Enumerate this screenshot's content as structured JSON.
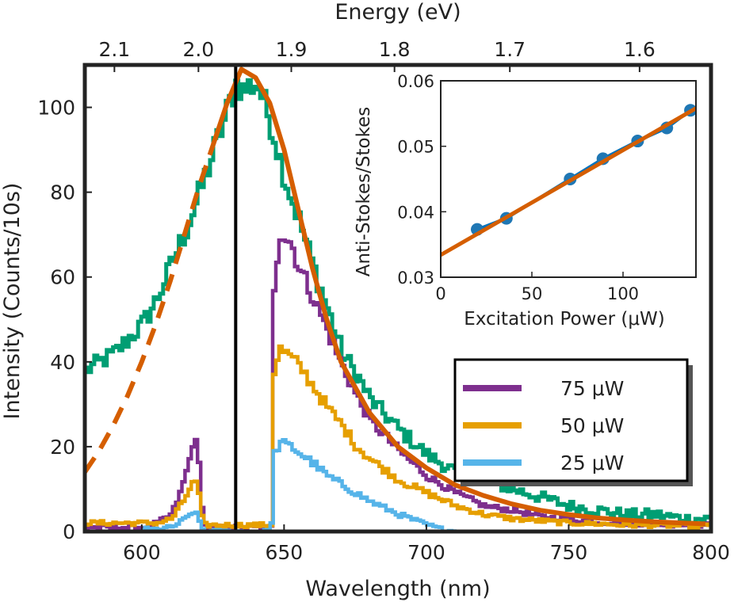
{
  "colors": {
    "green": "#009e73",
    "orange": "#d55e00",
    "purple": "#7e2f8e",
    "gold": "#e69f00",
    "skyblue": "#56b4e9",
    "blue": "#0072bd",
    "marker": "#1f77b4",
    "black": "#000000"
  },
  "chart_data": [
    {
      "type": "line",
      "xlabel": "Wavelength (nm)",
      "ylabel": "Intensity (Counts/10s)",
      "x2label": "Energy (eV)",
      "xlim": [
        580,
        800
      ],
      "ylim": [
        0,
        110
      ],
      "xticks": [
        600,
        650,
        700,
        750,
        800
      ],
      "xtick_labels": [
        "600",
        "650",
        "700",
        "750",
        "800"
      ],
      "yticks": [
        0,
        20,
        40,
        60,
        80,
        100
      ],
      "ytick_labels": [
        "0",
        "20",
        "40",
        "60",
        "80",
        "100"
      ],
      "x2ticks": [
        2.1,
        2.0,
        1.9,
        1.8,
        1.7,
        1.6
      ],
      "x2tick_labels": [
        "2.1",
        "2.0",
        "1.9",
        "1.8",
        "1.7",
        "1.6"
      ],
      "laser_line_x": 633,
      "legend": {
        "position": "lower-right",
        "entries": [
          "75 μW",
          "50 μW",
          "25 μW"
        ]
      },
      "series": [
        {
          "id": "pl-spectrum",
          "color_key": "green",
          "style": "noisy",
          "x": [
            580,
            590,
            600,
            605,
            610,
            615,
            620,
            625,
            630,
            633,
            635,
            640,
            645,
            650,
            655,
            660,
            665,
            670,
            675,
            680,
            690,
            700,
            710,
            720,
            730,
            740,
            750,
            760,
            770,
            780,
            790,
            800
          ],
          "y": [
            38,
            42,
            49,
            55,
            63,
            71,
            80,
            90,
            100,
            106,
            104,
            106,
            96,
            83,
            73,
            62,
            52,
            42,
            37,
            31,
            24,
            18,
            14,
            12,
            10,
            8,
            6,
            5,
            4,
            4,
            3,
            3
          ]
        },
        {
          "id": "fit-dashed",
          "color_key": "orange",
          "style": "dashed",
          "x": [
            580,
            585,
            590,
            595,
            600,
            605,
            610,
            615,
            620,
            625
          ],
          "y": [
            14,
            19,
            25,
            32,
            40,
            49,
            59,
            70,
            81,
            91
          ]
        },
        {
          "id": "fit-solid",
          "color_key": "orange",
          "style": "solid",
          "x": [
            625,
            630,
            635,
            640,
            645,
            650,
            655,
            660,
            665,
            670,
            680,
            690,
            700,
            710,
            720,
            730,
            740,
            750,
            760,
            770,
            780,
            790,
            798
          ],
          "y": [
            91,
            101,
            109,
            107,
            101,
            90,
            76,
            62,
            50,
            40,
            28,
            20,
            15,
            11,
            8.5,
            6.5,
            5,
            4,
            3.2,
            2.7,
            2.3,
            2,
            1.8
          ]
        },
        {
          "id": "series-75uW",
          "name": "75 μW",
          "color_key": "purple",
          "style": "noisy",
          "x": [
            580,
            600,
            605,
            610,
            613,
            616,
            618,
            620,
            621,
            622,
            640,
            645,
            646,
            648,
            652,
            655,
            660,
            665,
            670,
            675,
            680,
            690,
            700,
            710,
            720,
            730,
            740,
            750,
            760,
            770,
            780,
            790,
            800
          ],
          "y": [
            1,
            1,
            2,
            4,
            9,
            16,
            23,
            14,
            3,
            1,
            1,
            1,
            58,
            71,
            68,
            62,
            55,
            47,
            39,
            32,
            26,
            19,
            13,
            9,
            6,
            5,
            3.5,
            2.8,
            2.2,
            2,
            1.8,
            1.5,
            1.5
          ]
        },
        {
          "id": "series-50uW",
          "name": "50 μW",
          "color_key": "gold",
          "style": "noisy",
          "x": [
            580,
            600,
            605,
            610,
            614,
            617,
            619,
            620,
            621,
            622,
            640,
            645,
            646,
            648,
            652,
            656,
            660,
            665,
            670,
            675,
            680,
            690,
            700,
            710,
            720,
            730,
            740,
            750,
            760,
            770,
            780,
            790,
            800
          ],
          "y": [
            2,
            2,
            2,
            3,
            7,
            11,
            12,
            6,
            2,
            1.5,
            1.5,
            1.5,
            38,
            43,
            41,
            38,
            34,
            29,
            25,
            20,
            17,
            12,
            9,
            6,
            4,
            3,
            2.5,
            2,
            1.8,
            1.5,
            1.5,
            1.3,
            1.3
          ]
        },
        {
          "id": "series-25uW",
          "name": "25 μW",
          "color_key": "skyblue",
          "style": "noisy",
          "x": [
            600,
            605,
            610,
            615,
            618,
            620,
            621,
            622,
            640,
            645,
            646,
            648,
            652,
            656,
            660,
            665,
            670,
            680,
            690,
            700,
            705,
            710
          ],
          "y": [
            0.5,
            0.5,
            1,
            3,
            5,
            2,
            0.5,
            0,
            0,
            0,
            18,
            21,
            20,
            18,
            16,
            13,
            11,
            7,
            4,
            1.5,
            0.5,
            0
          ]
        }
      ]
    },
    {
      "type": "scatter",
      "xlabel": "Excitation Power (μW)",
      "ylabel": "Anti-Stokes/Stokes",
      "xlim": [
        0,
        140
      ],
      "ylim": [
        0.03,
        0.06
      ],
      "xticks": [
        0,
        50,
        100
      ],
      "xtick_labels": [
        "0",
        "50",
        "100"
      ],
      "yticks": [
        0.03,
        0.04,
        0.05,
        0.06
      ],
      "ytick_labels": [
        "0.03",
        "0.04",
        "0.05",
        "0.06"
      ],
      "points": {
        "x": [
          20,
          36,
          71,
          89,
          108,
          124,
          137
        ],
        "y": [
          0.0373,
          0.039,
          0.045,
          0.0481,
          0.0508,
          0.0528,
          0.0555
        ]
      },
      "fit": {
        "x": [
          0,
          140
        ],
        "y": [
          0.0334,
          0.0558
        ]
      }
    }
  ]
}
